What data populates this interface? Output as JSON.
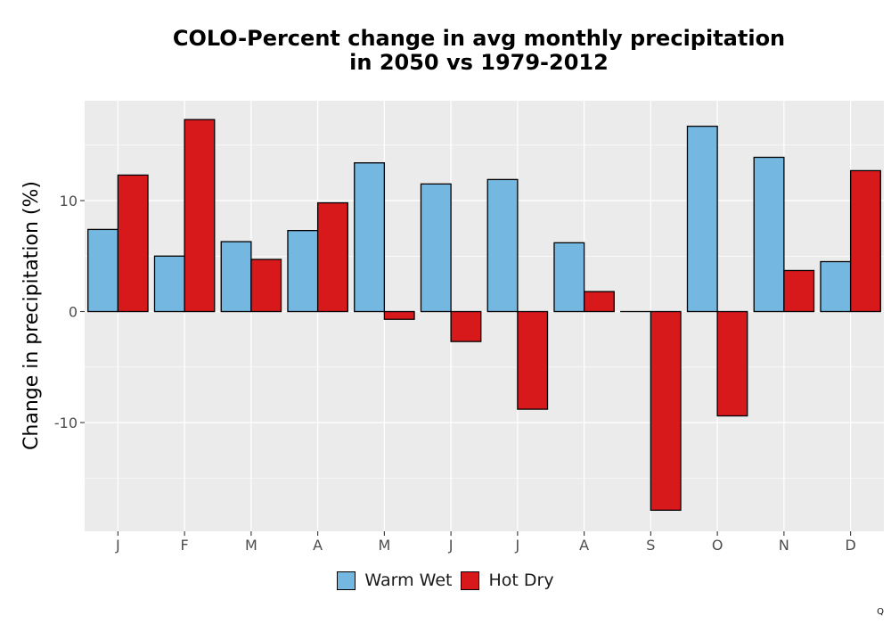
{
  "chart_data": {
    "type": "bar",
    "title_lines": [
      "COLO-Percent change in avg monthly precipitation",
      "in 2050 vs 1979-2012"
    ],
    "xlabel": "",
    "ylabel": "Change in precipitation (%)",
    "categories": [
      "J",
      "F",
      "M",
      "A",
      "M",
      "J",
      "J",
      "A",
      "S",
      "O",
      "N",
      "D"
    ],
    "series": [
      {
        "name": "Warm Wet",
        "color": "#74b7e0",
        "values": [
          7.4,
          5.0,
          6.3,
          7.3,
          13.4,
          11.5,
          11.9,
          6.2,
          0.0,
          16.7,
          13.9,
          4.5
        ]
      },
      {
        "name": "Hot Dry",
        "color": "#d7191c",
        "values": [
          12.3,
          17.3,
          4.7,
          9.8,
          -0.7,
          -2.7,
          -8.8,
          1.8,
          -17.9,
          -9.4,
          3.7,
          12.7
        ]
      }
    ],
    "yticks": [
      -10,
      0,
      10
    ],
    "ylim": [
      -19.8,
      19.0
    ],
    "grid": true,
    "legend_position": "bottom"
  },
  "corner_mark": "Q"
}
